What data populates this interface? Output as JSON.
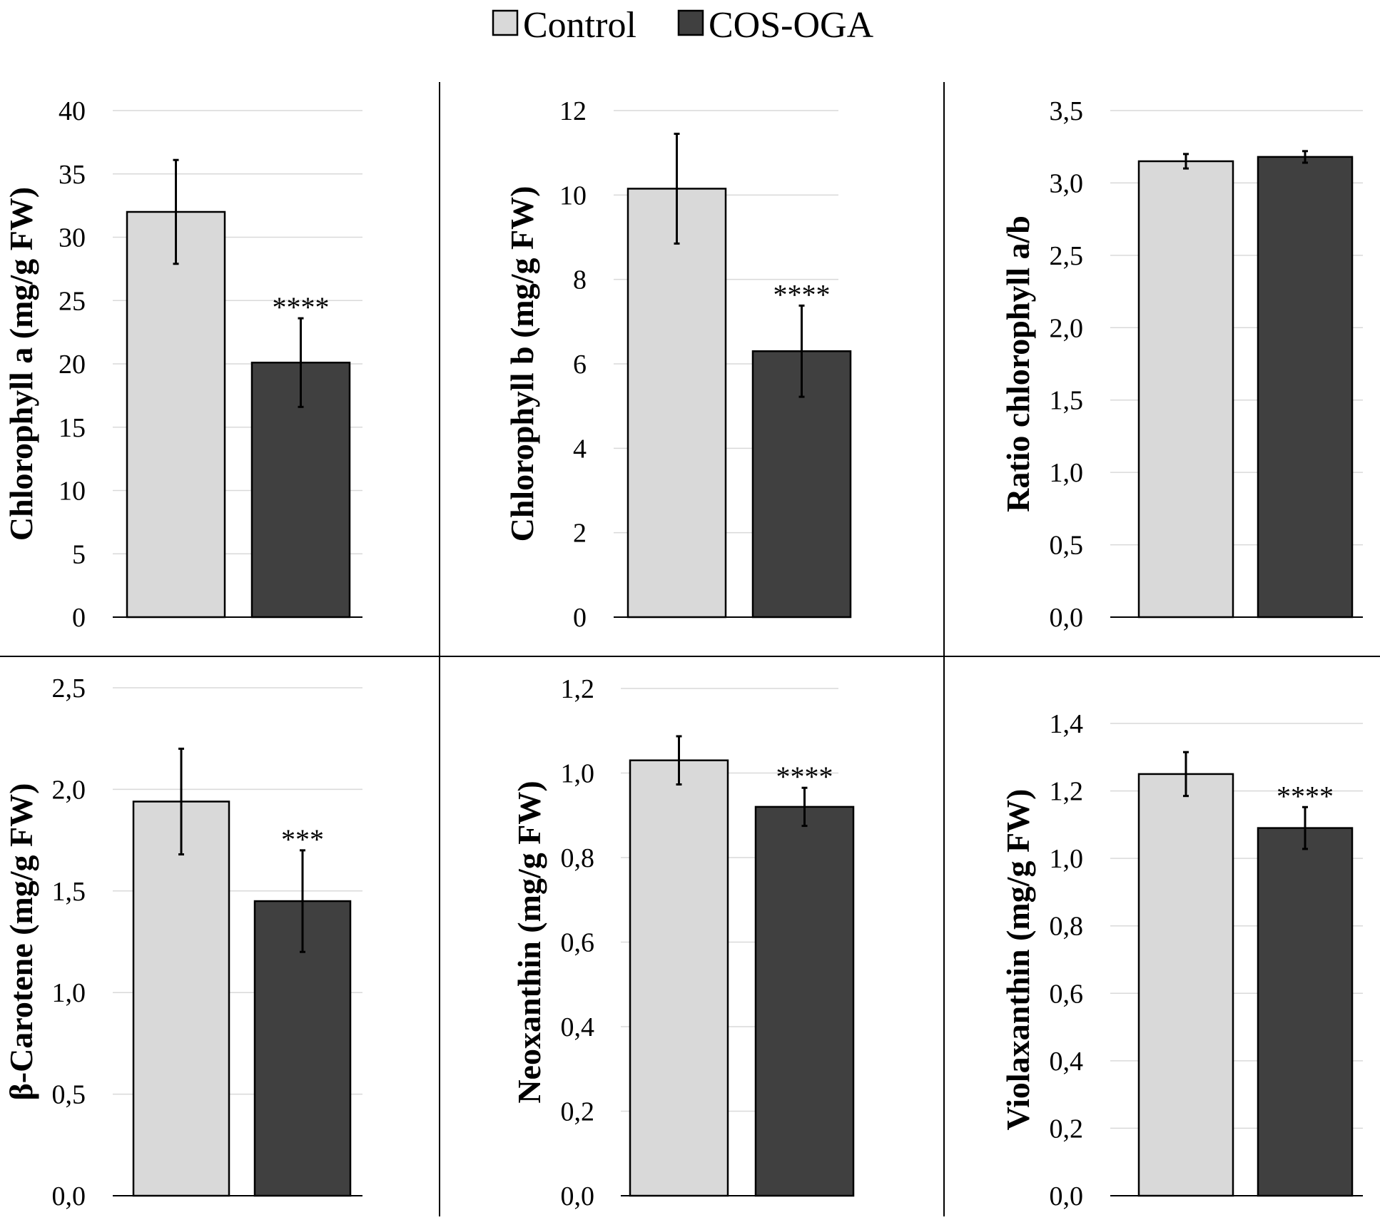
{
  "legend": [
    {
      "label": "Control",
      "color": "#d9d9d9"
    },
    {
      "label": "COS-OGA",
      "color": "#404040"
    }
  ],
  "colors": {
    "control": "#d9d9d9",
    "treatment": "#404040",
    "grid": "#d9d9d9",
    "divider": "#000000"
  },
  "chart_data": [
    {
      "type": "bar",
      "ylabel": "Chlorophyll a (mg/g FW)",
      "categories": [
        "Control",
        "COS-OGA"
      ],
      "values": [
        32.0,
        20.1
      ],
      "errors": [
        4.1,
        3.5
      ],
      "significance": [
        "",
        "****"
      ],
      "ylim": [
        0,
        40
      ],
      "ticks": [
        "0",
        "5",
        "10",
        "15",
        "20",
        "25",
        "30",
        "35",
        "40"
      ]
    },
    {
      "type": "bar",
      "ylabel": "Chlorophyll b (mg/g FW)",
      "categories": [
        "Control",
        "COS-OGA"
      ],
      "values": [
        10.15,
        6.3
      ],
      "errors": [
        1.3,
        1.08
      ],
      "significance": [
        "",
        "****"
      ],
      "ylim": [
        0,
        12
      ],
      "ticks": [
        "0",
        "2",
        "4",
        "6",
        "8",
        "10",
        "12"
      ]
    },
    {
      "type": "bar",
      "ylabel": "Ratio chlorophyll a/b",
      "categories": [
        "Control",
        "COS-OGA"
      ],
      "values": [
        3.15,
        3.18
      ],
      "errors": [
        0.05,
        0.04
      ],
      "significance": [
        "",
        ""
      ],
      "ylim": [
        0,
        3.5
      ],
      "ticks": [
        "0,0",
        "0,5",
        "1,0",
        "1,5",
        "2,0",
        "2,5",
        "3,0",
        "3,5"
      ]
    },
    {
      "type": "bar",
      "ylabel": "β-Carotene (mg/g FW)",
      "categories": [
        "Control",
        "COS-OGA"
      ],
      "values": [
        1.94,
        1.45
      ],
      "errors": [
        0.26,
        0.25
      ],
      "significance": [
        "",
        "***"
      ],
      "ylim": [
        0,
        2.5
      ],
      "ticks": [
        "0,0",
        "0,5",
        "1,0",
        "1,5",
        "2,0",
        "2,5"
      ]
    },
    {
      "type": "bar",
      "ylabel": "Neoxanthin (mg/g FW)",
      "categories": [
        "Control",
        "COS-OGA"
      ],
      "values": [
        1.03,
        0.92
      ],
      "errors": [
        0.057,
        0.045
      ],
      "significance": [
        "",
        "****"
      ],
      "ylim": [
        0,
        1.2
      ],
      "ticks": [
        "0,0",
        "0,2",
        "0,4",
        "0,6",
        "0,8",
        "1,0",
        "1,2"
      ]
    },
    {
      "type": "bar",
      "ylabel": "Violaxanthin (mg/g FW)",
      "categories": [
        "Control",
        "COS-OGA"
      ],
      "values": [
        1.25,
        1.09
      ],
      "errors": [
        0.065,
        0.062
      ],
      "significance": [
        "",
        "****"
      ],
      "ylim": [
        0,
        1.4
      ],
      "ticks": [
        "0,0",
        "0,2",
        "0,4",
        "0,6",
        "0,8",
        "1,0",
        "1,2",
        "1,4"
      ]
    }
  ]
}
